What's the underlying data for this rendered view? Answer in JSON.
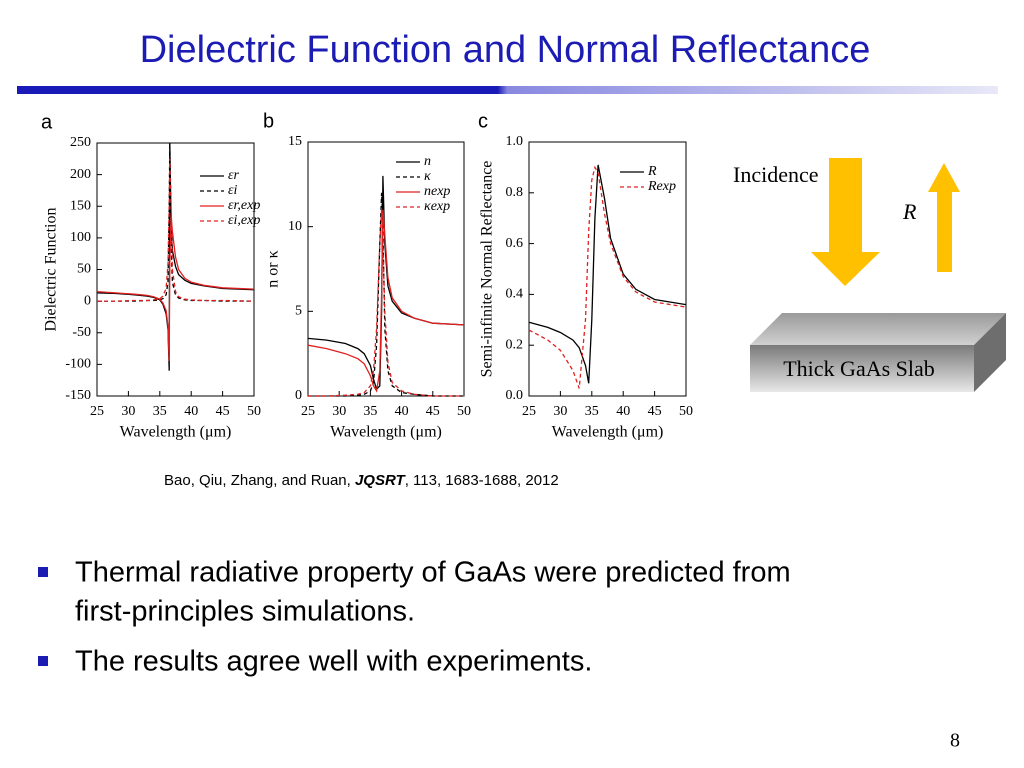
{
  "title": "Dielectric Function and Normal Reflectance",
  "chart_data": [
    {
      "type": "line",
      "panel": "a",
      "ylabel": "Dielectric Function",
      "xlabel": "Wavelength (μm)",
      "xlim": [
        25,
        50
      ],
      "xticks": [
        25,
        30,
        35,
        40,
        45,
        50
      ],
      "ylim": [
        -150,
        250
      ],
      "yticks": [
        -150,
        -100,
        -50,
        0,
        50,
        100,
        150,
        200,
        250
      ],
      "x": [
        25,
        28,
        31,
        33,
        34,
        35,
        35.5,
        36,
        36.3,
        36.5,
        36.6,
        36.8,
        37,
        37.5,
        38,
        39,
        40,
        42,
        45,
        50
      ],
      "series": [
        {
          "name": "εr",
          "color": "#000000",
          "dash": false,
          "values": [
            13,
            12,
            10,
            8,
            6,
            2,
            -5,
            -20,
            -45,
            -110,
            250,
            120,
            80,
            55,
            42,
            33,
            28,
            24,
            20,
            18
          ]
        },
        {
          "name": "εi",
          "color": "#000000",
          "dash": true,
          "values": [
            0,
            0,
            0,
            1,
            1,
            2,
            4,
            10,
            30,
            150,
            250,
            90,
            30,
            10,
            5,
            2,
            1,
            1,
            0,
            0
          ]
        },
        {
          "name": "εr,exp",
          "color": "#e02020",
          "dash": false,
          "values": [
            15,
            13,
            11,
            9,
            7,
            3,
            -3,
            -15,
            -40,
            -95,
            60,
            135,
            110,
            70,
            50,
            36,
            30,
            25,
            21,
            19
          ]
        },
        {
          "name": "εi,exp",
          "color": "#e02020",
          "dash": true,
          "values": [
            0,
            0,
            1,
            1,
            2,
            4,
            8,
            20,
            60,
            150,
            225,
            150,
            50,
            15,
            7,
            3,
            2,
            1,
            1,
            0
          ]
        }
      ]
    },
    {
      "type": "line",
      "panel": "b",
      "ylabel": "n or κ",
      "xlabel": "Wavelength (μm)",
      "xlim": [
        25,
        50
      ],
      "xticks": [
        25,
        30,
        35,
        40,
        45,
        50
      ],
      "ylim": [
        0,
        15
      ],
      "yticks": [
        0,
        5,
        10,
        15
      ],
      "x": [
        25,
        28,
        31,
        33,
        34,
        35,
        35.5,
        36,
        36.5,
        36.8,
        37,
        37.3,
        37.8,
        38.5,
        40,
        42,
        45,
        50
      ],
      "series": [
        {
          "name": "n",
          "color": "#000000",
          "dash": false,
          "values": [
            3.4,
            3.3,
            3.1,
            2.8,
            2.5,
            1.8,
            1.0,
            0.4,
            0.6,
            5,
            13,
            9,
            6.5,
            5.6,
            4.9,
            4.6,
            4.3,
            4.2
          ]
        },
        {
          "name": "κ",
          "color": "#000000",
          "dash": true,
          "values": [
            0,
            0,
            0,
            0.05,
            0.1,
            0.3,
            0.8,
            3,
            9,
            12,
            10,
            4,
            1.5,
            0.6,
            0.2,
            0.1,
            0,
            0
          ]
        },
        {
          "name": "nexp",
          "color": "#e02020",
          "dash": false,
          "values": [
            3.0,
            2.8,
            2.5,
            2.2,
            1.9,
            1.2,
            0.6,
            0.3,
            1.5,
            6,
            11,
            9.5,
            7,
            5.8,
            5,
            4.6,
            4.3,
            4.2
          ]
        },
        {
          "name": "κexp",
          "color": "#e02020",
          "dash": true,
          "values": [
            0,
            0,
            0.05,
            0.1,
            0.2,
            0.6,
            1.5,
            4,
            9,
            11,
            9,
            5,
            2,
            0.8,
            0.3,
            0.1,
            0,
            0
          ]
        }
      ]
    },
    {
      "type": "line",
      "panel": "c",
      "ylabel": "Semi-infinite Normal Reflectance",
      "xlabel": "Wavelength (μm)",
      "xlim": [
        25,
        50
      ],
      "xticks": [
        25,
        30,
        35,
        40,
        45,
        50
      ],
      "ylim": [
        0,
        1
      ],
      "yticks": [
        {
          "value": 0,
          "label": "0.0"
        },
        0.2,
        0.4,
        0.6,
        0.8,
        {
          "value": 1,
          "label": "1.0"
        }
      ],
      "x": [
        25,
        28,
        30,
        32,
        33,
        34,
        34.5,
        35,
        35.5,
        36,
        37,
        38,
        40,
        42,
        45,
        50
      ],
      "series": [
        {
          "name": "R",
          "color": "#000000",
          "dash": false,
          "values": [
            0.29,
            0.27,
            0.25,
            0.22,
            0.19,
            0.12,
            0.05,
            0.3,
            0.7,
            0.91,
            0.78,
            0.62,
            0.48,
            0.42,
            0.38,
            0.36
          ]
        },
        {
          "name": "Rexp",
          "color": "#e02020",
          "dash": true,
          "values": [
            0.26,
            0.22,
            0.18,
            0.1,
            0.03,
            0.3,
            0.65,
            0.85,
            0.9,
            0.88,
            0.72,
            0.6,
            0.47,
            0.41,
            0.37,
            0.35
          ]
        }
      ]
    }
  ],
  "diagram": {
    "incidence": "Incidence",
    "reflected": "R",
    "slab": "Thick GaAs Slab"
  },
  "citation": {
    "authors": "Bao, Qiu, Zhang, and Ruan, ",
    "journal": "JQSRT",
    "rest": ", 113, 1683-1688, 2012"
  },
  "bullets": [
    "Thermal radiative property of GaAs were predicted from",
    "first-principles simulations.",
    "The results agree well with experiments."
  ],
  "page_number": "8"
}
